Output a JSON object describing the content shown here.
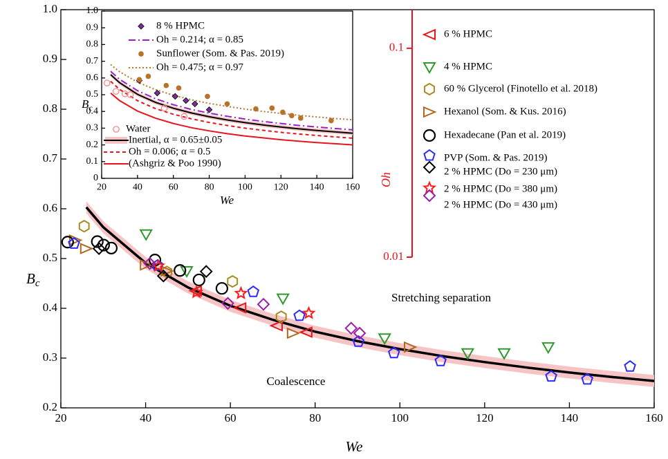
{
  "chart_data": [
    {
      "type": "scatter",
      "xlabel": "We",
      "ylabel": {
        "text": "B",
        "sub": "c"
      },
      "xlim": [
        20,
        160
      ],
      "xticks": [
        20,
        40,
        60,
        80,
        100,
        120,
        140,
        160
      ],
      "ylim": [
        0.2,
        1.0
      ],
      "yticks": [
        0.2,
        0.3,
        0.4,
        0.5,
        0.6,
        0.7,
        0.8,
        0.9,
        {
          "value": 1.0,
          "label": "1.0"
        }
      ],
      "y2label": "Oh",
      "y2log": true,
      "y2color": "#e8141b",
      "y2lim": [
        0.01,
        0.153
      ],
      "y2ticks": [
        0.01,
        0.1
      ],
      "annotations": [
        "Stretching separation",
        "Coalescence"
      ],
      "fit": {
        "color": "#000000",
        "band_color": "#f6c4c4",
        "band": 0.012,
        "x": [
          26,
          30,
          40,
          50,
          60,
          70,
          80,
          90,
          100,
          110,
          120,
          130,
          140,
          150,
          160
        ],
        "values": [
          0.603,
          0.563,
          0.491,
          0.442,
          0.405,
          0.377,
          0.353,
          0.334,
          0.318,
          0.304,
          0.292,
          0.281,
          0.271,
          0.262,
          0.254
        ]
      },
      "series": [
        {
          "name": "6 % HPMC",
          "color": "#e8141b",
          "marker": "ltri",
          "x": [
            51.8,
            62.3,
            70.9,
            77.9
          ],
          "values": [
            0.435,
            0.401,
            0.365,
            0.352
          ]
        },
        {
          "name": "4 % HPMC",
          "color": "#2e9a2e",
          "marker": "dtri",
          "x": [
            40.1,
            49.7,
            72.4,
            96.4,
            116,
            124.6,
            135
          ],
          "values": [
            0.549,
            0.475,
            0.42,
            0.34,
            0.31,
            0.31,
            0.322
          ]
        },
        {
          "name": "60 % Glycerol (Finotello et al. 2018)",
          "color": "#a88a1e",
          "marker": "hex",
          "x": [
            25.5,
            45,
            60.5,
            72
          ],
          "values": [
            0.565,
            0.473,
            0.454,
            0.383
          ]
        },
        {
          "name": "Hexanol (Som. & Kus. 2016)",
          "color": "#b5651d",
          "marker": "rtri",
          "x": [
            23.4,
            26,
            40.1,
            45,
            74.8,
            102.4
          ],
          "values": [
            0.537,
            0.52,
            0.487,
            0.475,
            0.35,
            0.322
          ]
        },
        {
          "name": "Hexadecane (Pan et al. 2019)",
          "color": "#000000",
          "marker": "circle",
          "x": [
            21.6,
            28.6,
            30.1,
            31.9,
            42.2,
            48.1,
            52.6,
            58.0
          ],
          "values": [
            0.533,
            0.534,
            0.527,
            0.521,
            0.497,
            0.476,
            0.457,
            0.44
          ]
        },
        {
          "name": "PVP (Som. & Pas. 2019)",
          "color": "#2a2aff",
          "marker": "pent",
          "x": [
            23.1,
            42.8,
            65.4,
            76.3,
            90.2,
            98.6,
            109.6,
            135.7,
            144.2,
            154.3
          ],
          "values": [
            0.53,
            0.486,
            0.433,
            0.385,
            0.333,
            0.31,
            0.294,
            0.263,
            0.257,
            0.283
          ]
        },
        {
          "name": "2 % HPMC (Do = 230 μm)",
          "color": "#000000",
          "marker": "diamond",
          "x": [
            29,
            44.2,
            54.3
          ],
          "values": [
            0.52,
            0.465,
            0.474
          ]
        },
        {
          "name": "2 % HPMC (Do = 380 μm)",
          "color": "#ff1a1a",
          "marker": "star",
          "x": [
            43,
            52,
            62.5,
            78.5
          ],
          "values": [
            0.485,
            0.432,
            0.43,
            0.39
          ]
        },
        {
          "name": "2 % HPMC (Do = 430 μm)",
          "color": "#9b1fa8",
          "marker": "diamond",
          "x": [
            41,
            59.4,
            67.8,
            88.5,
            90.5
          ],
          "values": [
            0.49,
            0.41,
            0.408,
            0.36,
            0.35
          ]
        }
      ]
    },
    {
      "type": "scatter",
      "xlabel": "We",
      "ylabel": {
        "text": "B",
        "sub": "c"
      },
      "xlim": [
        20,
        160
      ],
      "xticks": [
        20,
        40,
        60,
        80,
        100,
        120,
        140,
        160
      ],
      "ylim": [
        0,
        1.0
      ],
      "yticks": [
        0,
        0.1,
        0.2,
        0.3,
        0.4,
        0.5,
        0.6,
        0.7,
        0.8,
        0.9,
        {
          "value": 1.0,
          "label": "1.0"
        }
      ],
      "series": [
        {
          "name": "8 % HPMC",
          "color": "#7b2d9a",
          "marker": "diamond-filled",
          "x": [
            41,
            51,
            61,
            67,
            72,
            80
          ],
          "values": [
            0.585,
            0.51,
            0.49,
            0.465,
            0.445,
            0.41
          ]
        },
        {
          "name": "Sunflower  (Som. & Pas. 2019)",
          "color": "#b8732a",
          "marker": "dot",
          "x": [
            41,
            46,
            56,
            63,
            79,
            90,
            106,
            115,
            121,
            126,
            131,
            148
          ],
          "values": [
            0.59,
            0.61,
            0.555,
            0.54,
            0.49,
            0.445,
            0.415,
            0.42,
            0.395,
            0.375,
            0.36,
            0.345
          ]
        },
        {
          "name": "Water",
          "color": "#f08080",
          "marker": "water",
          "x": [
            23,
            28,
            33,
            36,
            55,
            66
          ],
          "values": [
            0.57,
            0.52,
            0.505,
            0.5,
            0.42,
            0.37
          ]
        }
      ],
      "curves": [
        {
          "name": "Oh = 0.214; α = 0.85",
          "color": "#9b1fc8",
          "dash": "10 4 2 4",
          "x": [
            25,
            30,
            40,
            50,
            60,
            70,
            80,
            90,
            100,
            110,
            120,
            130,
            140,
            150,
            160
          ],
          "values": [
            0.64,
            0.592,
            0.524,
            0.476,
            0.44,
            0.412,
            0.39,
            0.371,
            0.354,
            0.34,
            0.328,
            0.316,
            0.307,
            0.298,
            0.29
          ]
        },
        {
          "name": "Oh = 0.475; α =  0.97",
          "color": "#b8732a",
          "dash": "2 3",
          "x": [
            25,
            30,
            40,
            50,
            60,
            70,
            80,
            90,
            100,
            110,
            120,
            130,
            140,
            150,
            160
          ],
          "values": [
            0.68,
            0.637,
            0.575,
            0.53,
            0.497,
            0.47,
            0.448,
            0.43,
            0.414,
            0.4,
            0.388,
            0.377,
            0.367,
            0.358,
            0.35
          ]
        },
        {
          "name": "Inertial, α = 0.65±0.05",
          "color": "#000000",
          "band": 0.012,
          "band_color": "#f6c4c4",
          "x": [
            25,
            30,
            40,
            50,
            60,
            70,
            80,
            90,
            100,
            110,
            120,
            130,
            140,
            150,
            160
          ],
          "values": [
            0.62,
            0.572,
            0.502,
            0.454,
            0.419,
            0.391,
            0.368,
            0.349,
            0.333,
            0.319,
            0.307,
            0.296,
            0.286,
            0.278,
            0.27
          ]
        },
        {
          "name": "Oh = 0.006; α = 0.5",
          "color": "#e8141b",
          "dash": "5 4",
          "x": [
            25,
            30,
            40,
            50,
            60,
            70,
            80,
            90,
            100,
            110,
            120,
            130,
            140,
            150,
            160
          ],
          "values": [
            0.58,
            0.532,
            0.464,
            0.417,
            0.383,
            0.356,
            0.334,
            0.316,
            0.3,
            0.287,
            0.275,
            0.265,
            0.256,
            0.248,
            0.24
          ]
        },
        {
          "name": "(Ashgriz & Poo 1990)",
          "color": "#e8141b",
          "x": [
            25,
            30,
            40,
            50,
            60,
            70,
            80,
            90,
            100,
            110,
            120,
            130,
            140,
            150,
            160
          ],
          "values": [
            0.51,
            0.465,
            0.402,
            0.36,
            0.328,
            0.303,
            0.284,
            0.267,
            0.253,
            0.242,
            0.231,
            0.222,
            0.214,
            0.207,
            0.2
          ]
        }
      ]
    }
  ]
}
